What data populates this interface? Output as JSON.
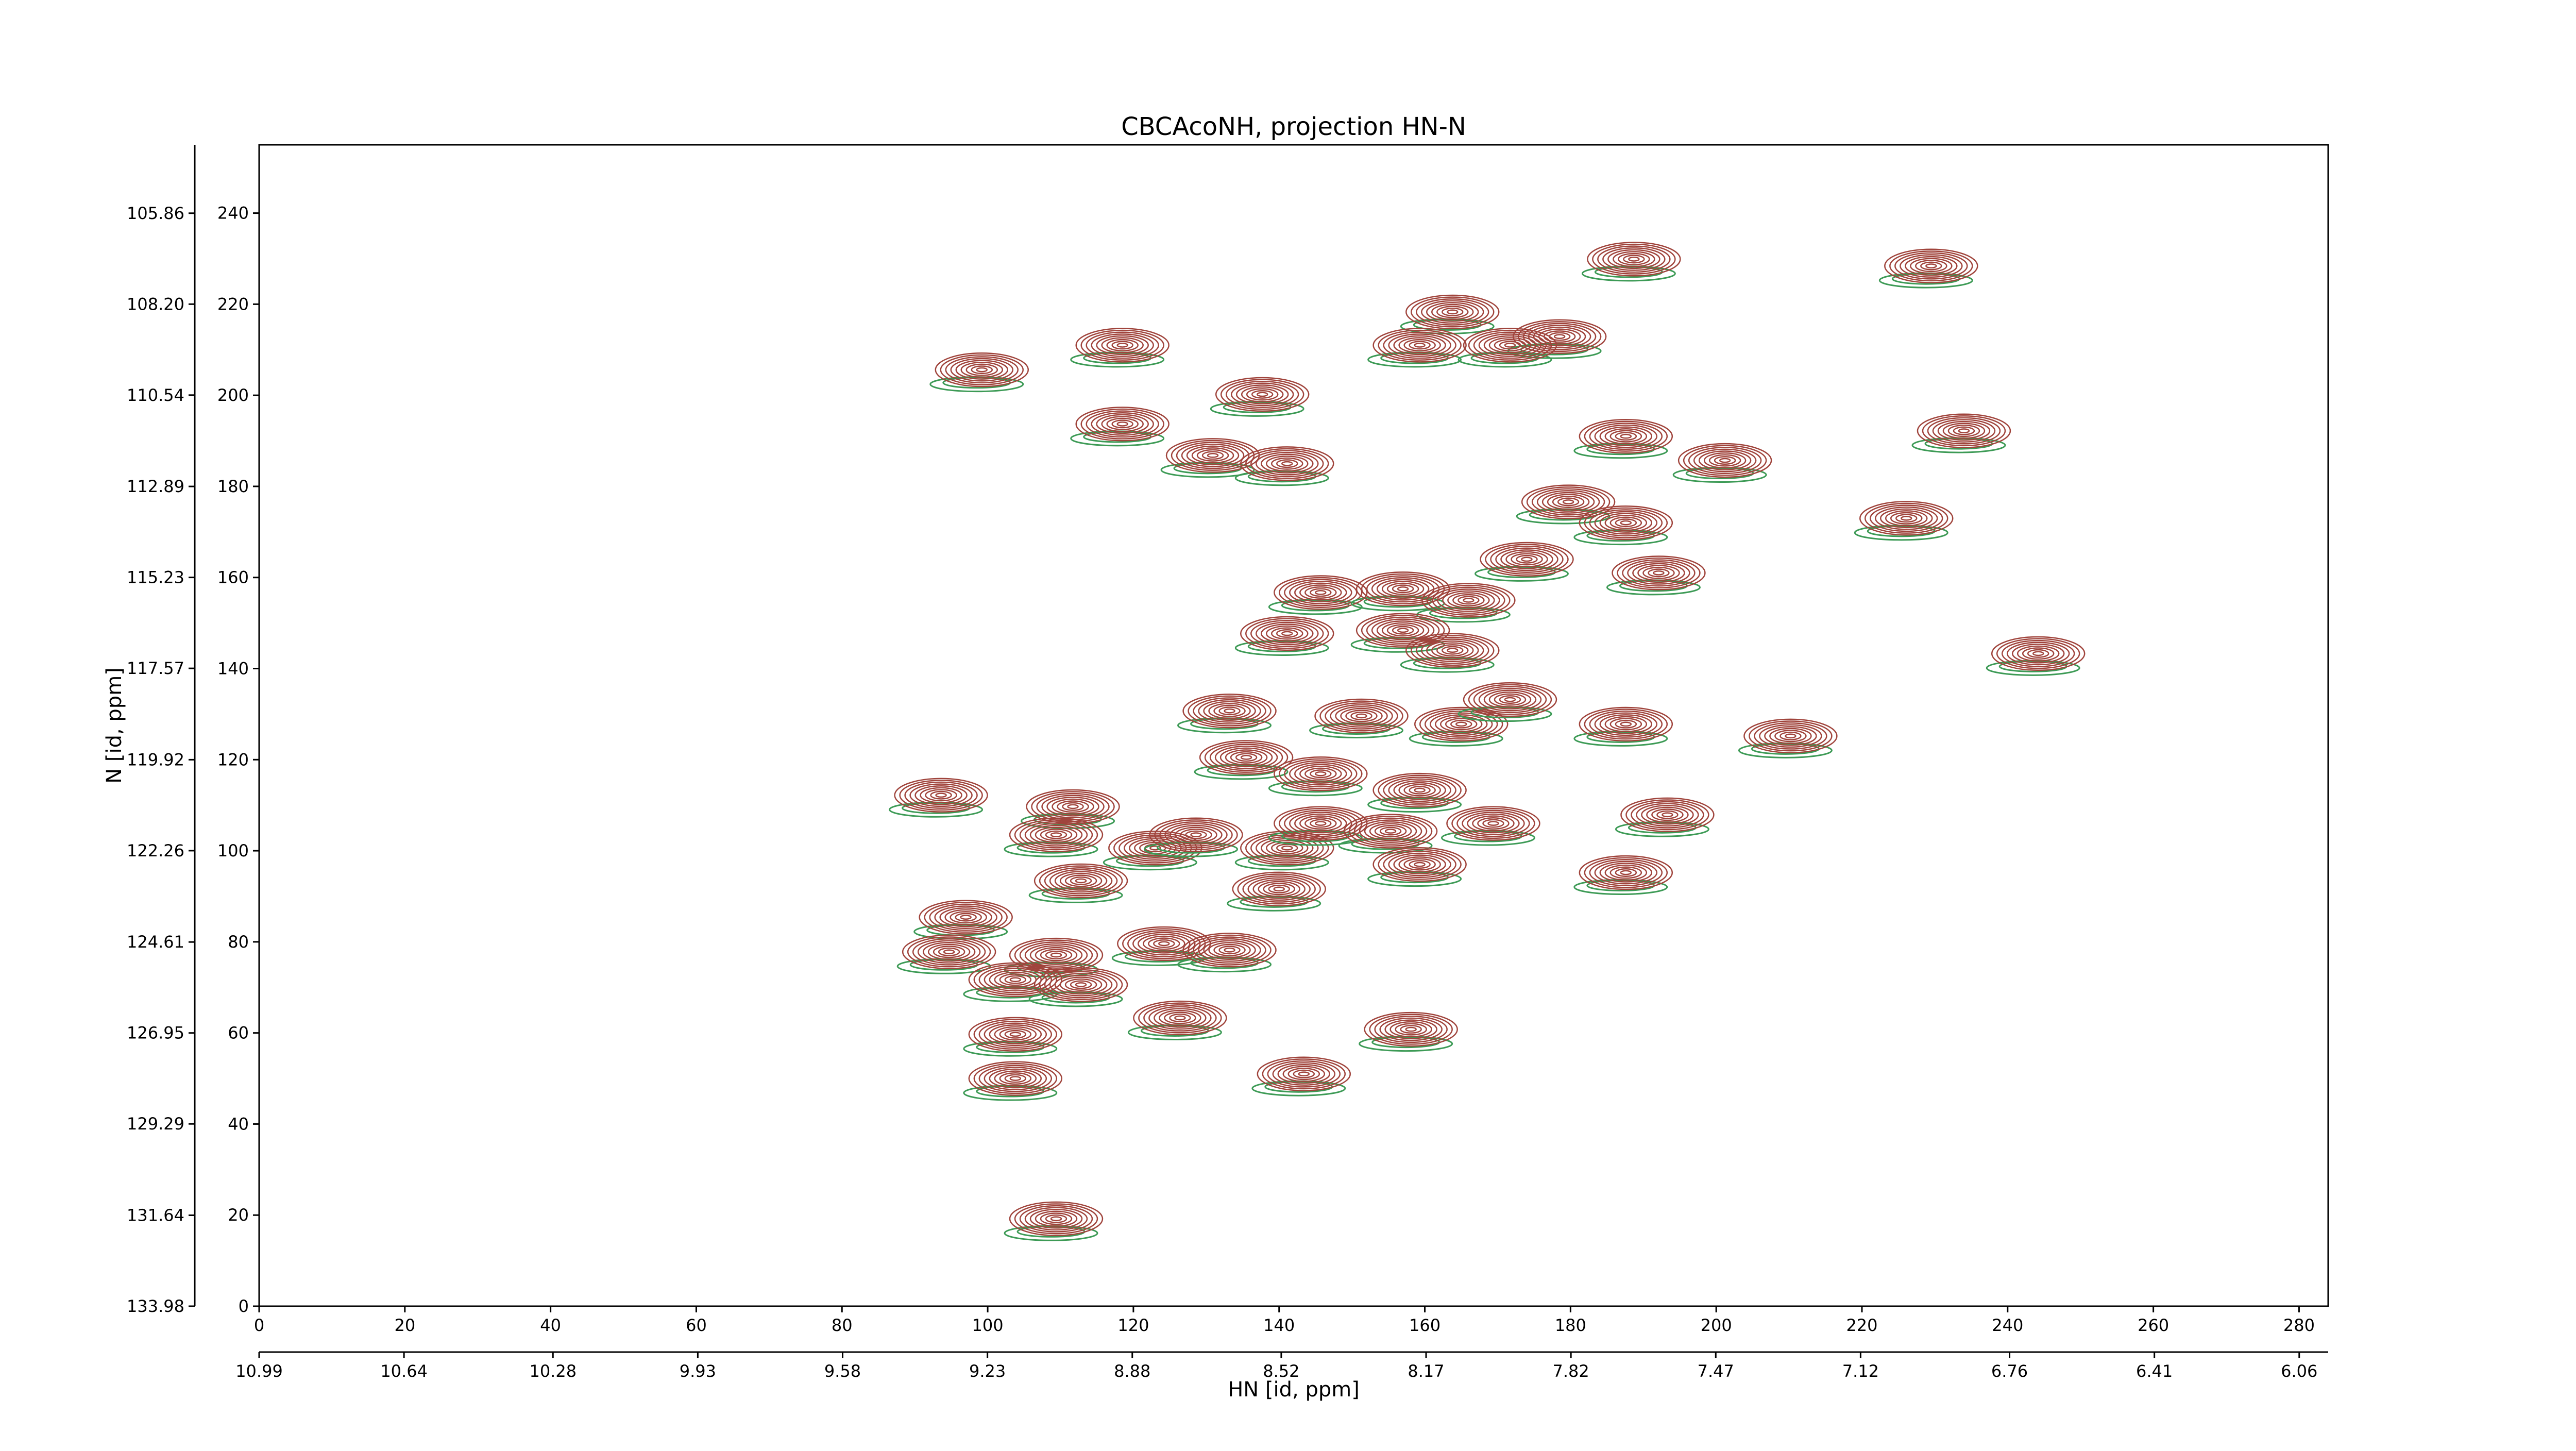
{
  "chart_data": {
    "type": "contour",
    "title": "CBCAcoNH, projection HN-N",
    "x_label": "HN [id, ppm]",
    "y_label": "N [id, ppm]",
    "xlim": [
      0,
      284
    ],
    "ylim": [
      0,
      255
    ],
    "xticks": [
      0,
      20,
      40,
      60,
      80,
      100,
      120,
      140,
      160,
      180,
      200,
      220,
      240,
      260,
      280
    ],
    "yticks": [
      0,
      20,
      40,
      60,
      80,
      100,
      120,
      140,
      160,
      180,
      200,
      220,
      240
    ],
    "x2lim": [
      10.99,
      5.99
    ],
    "x2ticks": [
      10.99,
      10.64,
      10.28,
      9.93,
      9.58,
      9.23,
      8.88,
      8.52,
      8.17,
      7.82,
      7.47,
      7.12,
      6.76,
      6.41,
      6.06
    ],
    "y2lim": [
      133.98,
      104.1
    ],
    "y2ticks": [
      133.98,
      131.64,
      129.29,
      126.95,
      124.61,
      122.26,
      119.92,
      117.57,
      115.23,
      112.89,
      110.54,
      {
        "value": 108.2,
        "label": "108.20"
      },
      105.86
    ],
    "positive_color": "#a0443c",
    "negative_color": "#3c9a55",
    "peaks": {
      "x": [
        188.7,
        229.5,
        163.8,
        159.3,
        178.5,
        171.7,
        118.5,
        99.2,
        137.7,
        118.5,
        130.9,
        141.1,
        187.6,
        201.2,
        234,
        226.1,
        179.7,
        187.6,
        174,
        192.1,
        145.7,
        157,
        166,
        141.1,
        157,
        163.8,
        244.2,
        133.2,
        151.3,
        165,
        171.7,
        187.6,
        210.2,
        135.5,
        145.7,
        93.6,
        111.7,
        159.3,
        109.4,
        123,
        128.6,
        141.1,
        145.7,
        155.3,
        169.4,
        159.3,
        112.8,
        187.6,
        193.3,
        140,
        97,
        94.7,
        124.2,
        133.2,
        109.4,
        103.8,
        112.8,
        126.4,
        103.8,
        158.1,
        103.8,
        143.4,
        109.4
      ],
      "y": [
        229.9,
        228.4,
        218.3,
        211,
        212.9,
        211,
        211,
        205.6,
        200.2,
        193.7,
        186.8,
        185,
        191,
        185.7,
        192.2,
        173,
        176.6,
        172,
        164,
        161,
        156.7,
        157.5,
        155,
        147.7,
        148.4,
        144,
        143.3,
        130.7,
        129.6,
        127.8,
        133.2,
        127.8,
        125.2,
        120.5,
        116.9,
        112.2,
        109.7,
        113.3,
        103.5,
        100.6,
        103.5,
        100.6,
        106,
        104.3,
        106,
        97,
        93.4,
        95.2,
        107.9,
        91.6,
        85.4,
        77.8,
        79.6,
        78.2,
        77.1,
        71.7,
        70.6,
        63.3,
        59.7,
        60.8,
        50,
        51,
        19.2
      ]
    }
  }
}
